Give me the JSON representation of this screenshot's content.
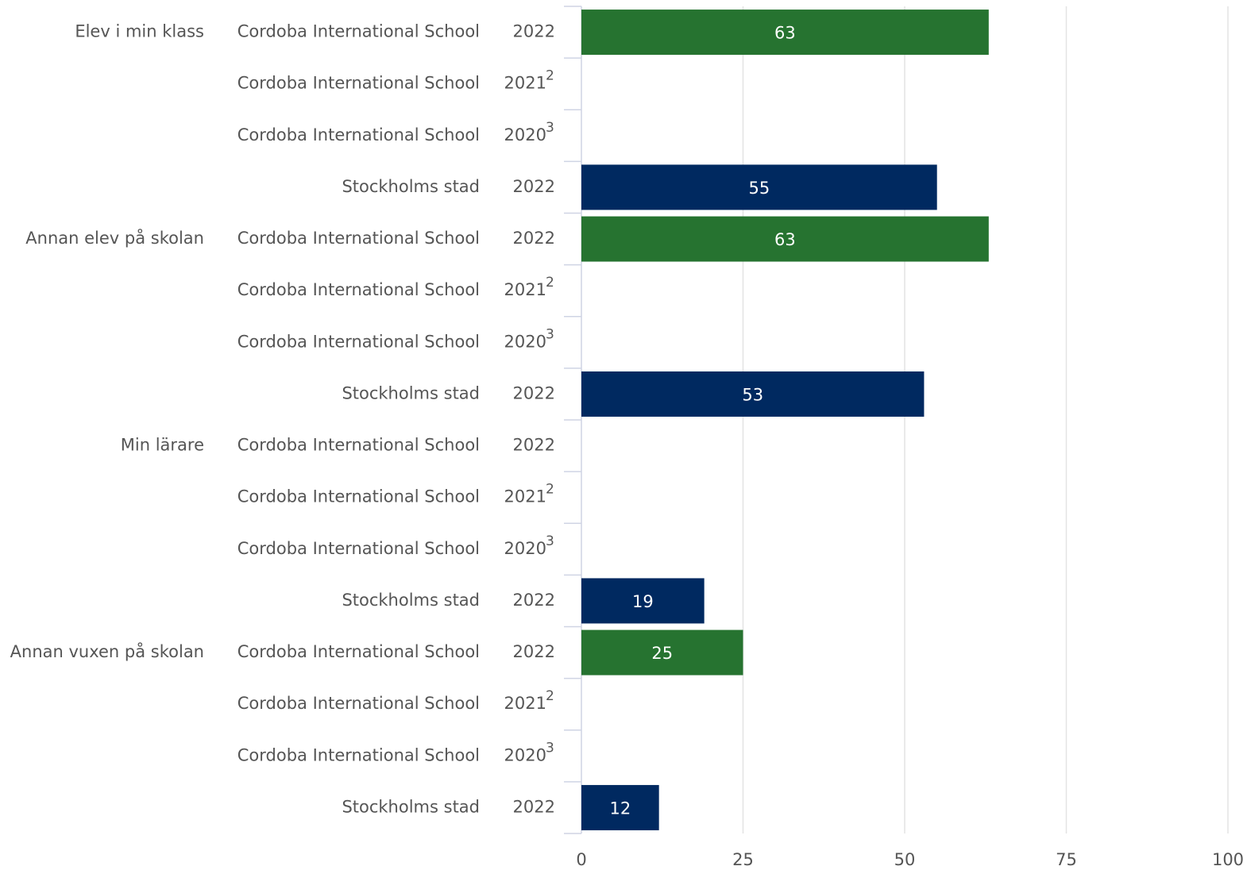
{
  "chart_data": {
    "type": "bar",
    "orientation": "horizontal",
    "groups": [
      "Elev i min klass",
      "Annan elev på skolan",
      "Min lärare",
      "Annan vuxen på skolan"
    ],
    "categories": [
      "Cordoba International School",
      "Cordoba International School",
      "Cordoba International School",
      "Stockholms stad",
      "Cordoba International School",
      "Cordoba International School",
      "Cordoba International School",
      "Stockholms stad",
      "Cordoba International School",
      "Cordoba International School",
      "Cordoba International School",
      "Stockholms stad",
      "Cordoba International School",
      "Cordoba International School",
      "Cordoba International School",
      "Stockholms stad"
    ],
    "years": [
      "2022",
      "2021",
      "2020",
      "2022",
      "2022",
      "2021",
      "2020",
      "2022",
      "2022",
      "2021",
      "2020",
      "2022",
      "2022",
      "2021",
      "2020",
      "2022"
    ],
    "year_notes": [
      null,
      "2",
      "3",
      null,
      null,
      "2",
      "3",
      null,
      null,
      "2",
      "3",
      null,
      null,
      "2",
      "3",
      null
    ],
    "values": [
      63,
      null,
      null,
      55,
      63,
      null,
      null,
      53,
      null,
      null,
      null,
      19,
      25,
      null,
      null,
      12
    ],
    "colors": [
      "#267330",
      null,
      null,
      "#002960",
      "#267330",
      null,
      null,
      "#002960",
      "#267330",
      null,
      null,
      "#002960",
      "#267330",
      null,
      null,
      "#002960"
    ],
    "xlim": [
      0,
      100
    ],
    "xticks": [
      0,
      25,
      50,
      75,
      100
    ],
    "grid": true
  }
}
